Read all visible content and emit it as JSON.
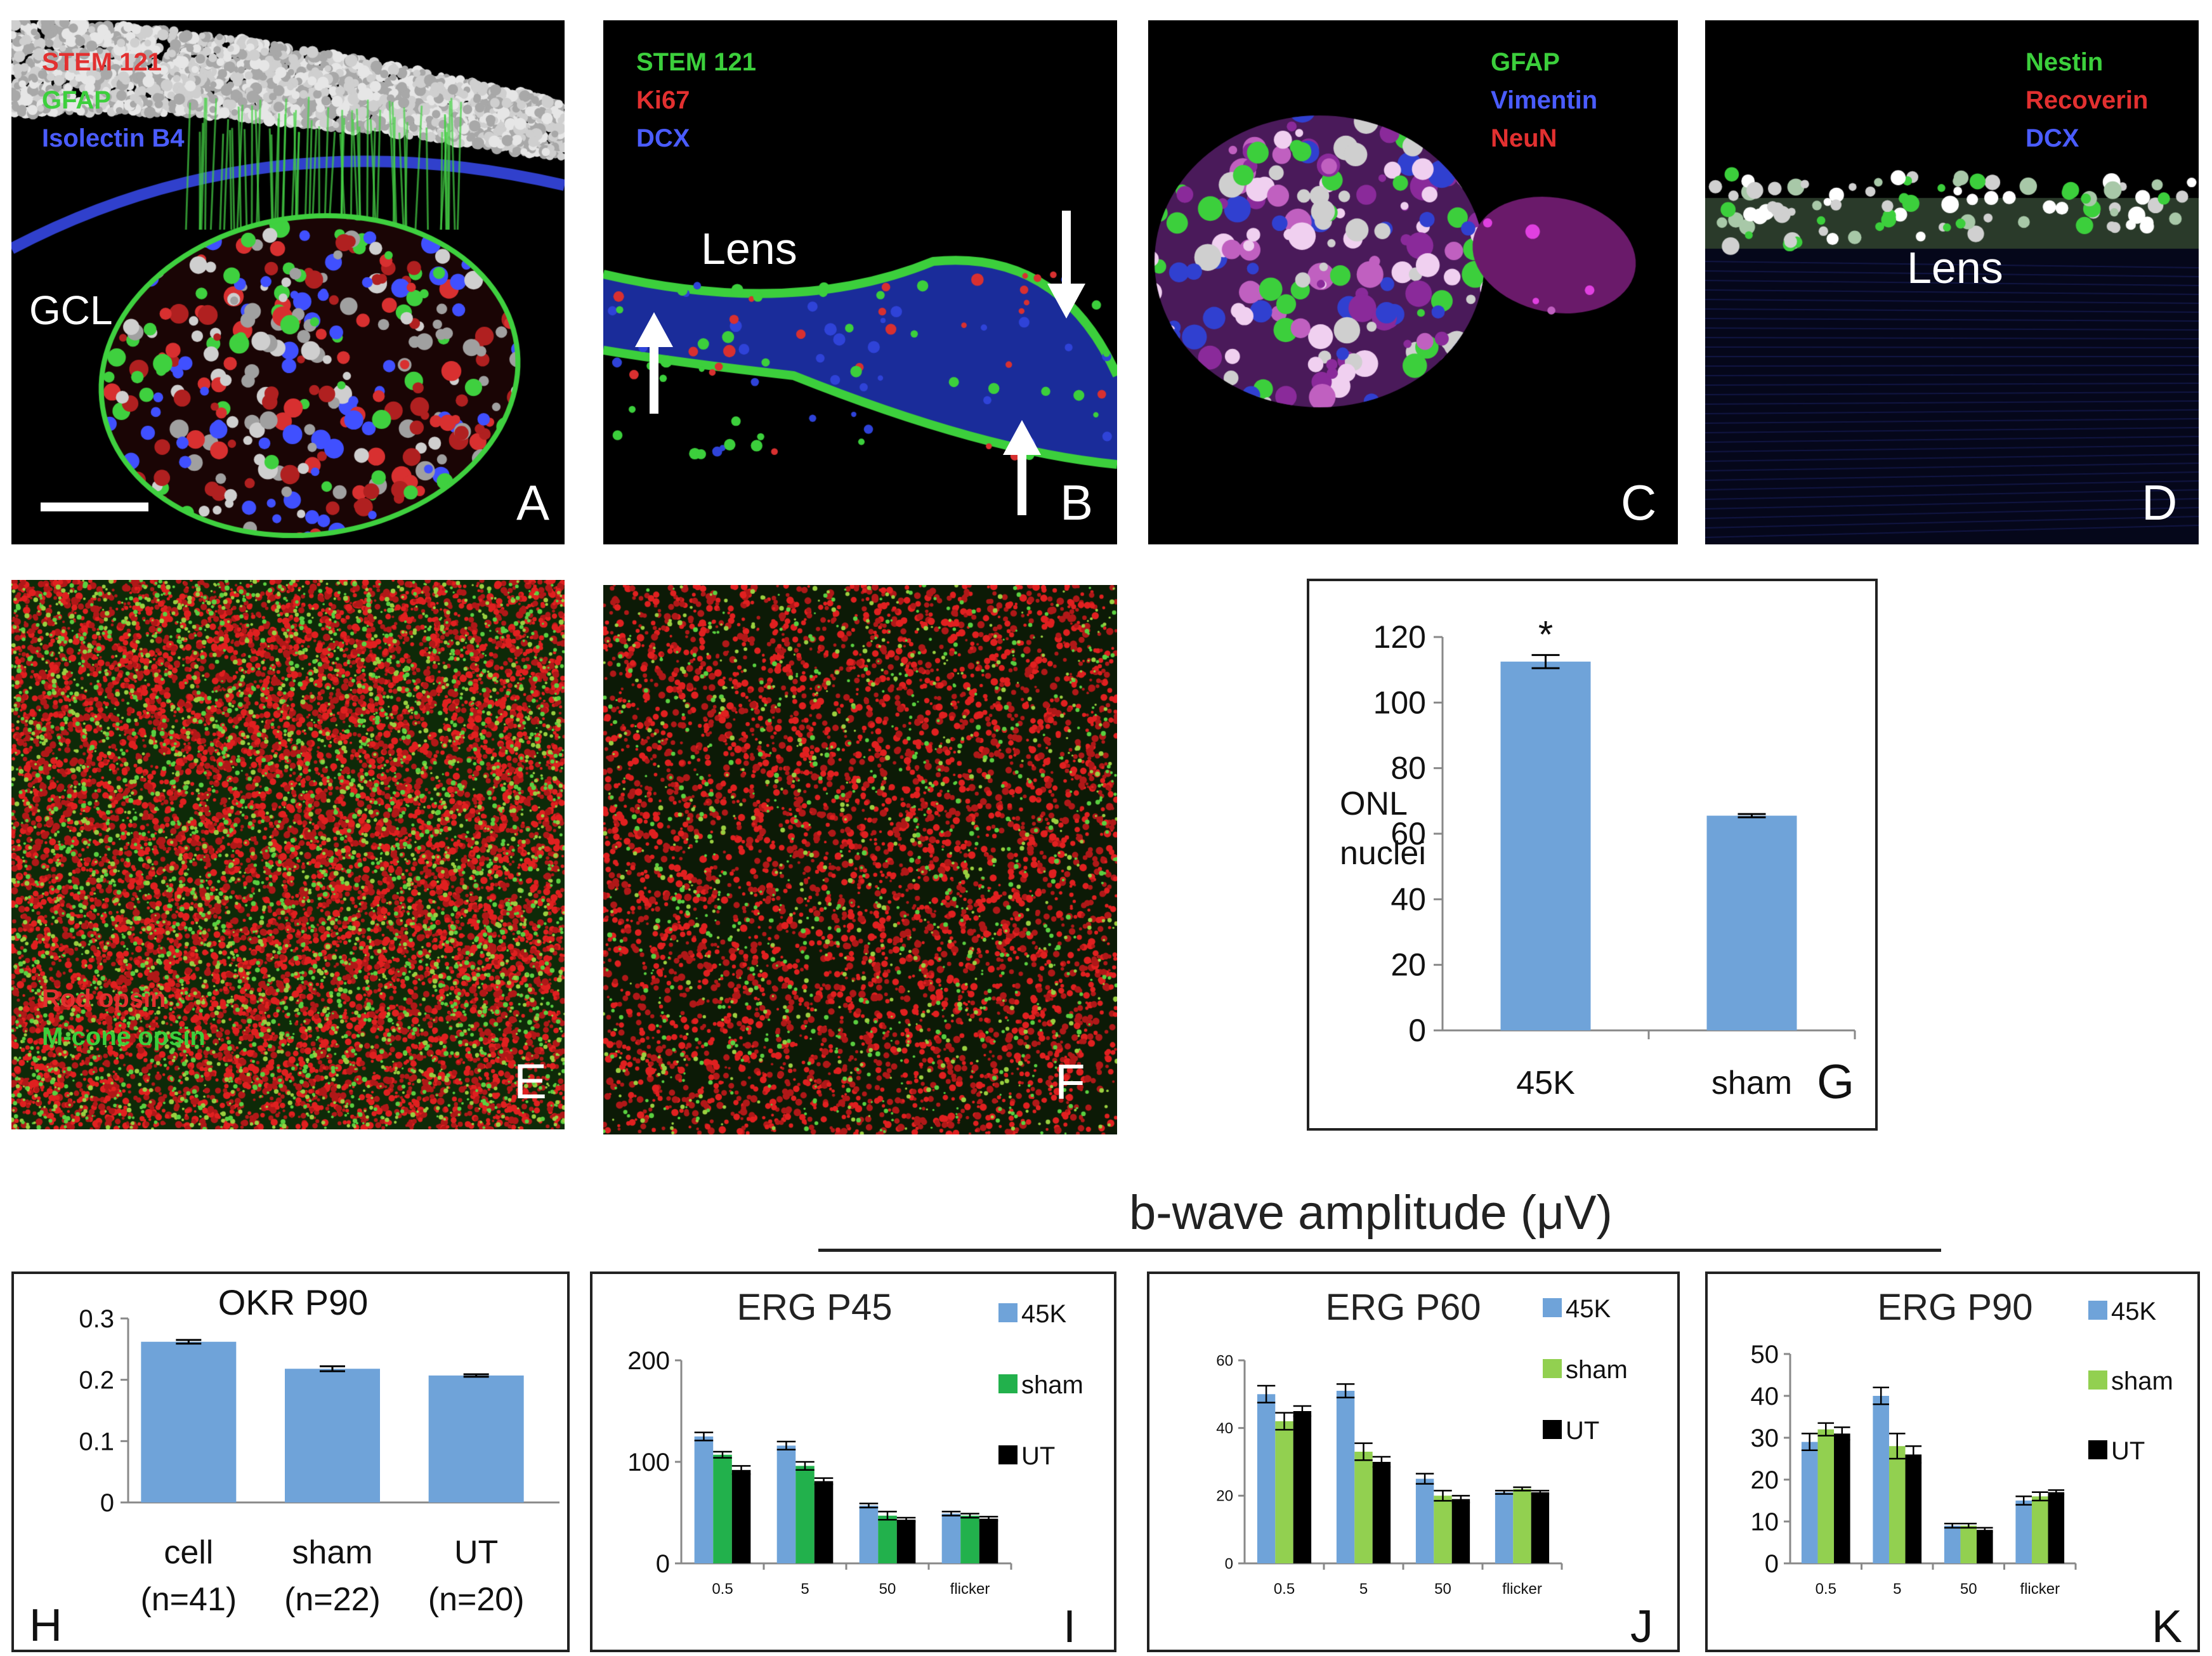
{
  "panels": {
    "A": {
      "letter": "A",
      "stains": [
        {
          "text": "STEM 121",
          "color": "#e23030"
        },
        {
          "text": "GFAP",
          "color": "#3ccf3c"
        },
        {
          "text": "Isolectin B4",
          "color": "#4a5cff"
        }
      ],
      "label": "GCL"
    },
    "B": {
      "letter": "B",
      "stains": [
        {
          "text": "STEM 121",
          "color": "#3ccf3c"
        },
        {
          "text": "Ki67",
          "color": "#e23030"
        },
        {
          "text": "DCX",
          "color": "#4a5cff"
        }
      ],
      "label": "Lens"
    },
    "C": {
      "letter": "C",
      "stains": [
        {
          "text": "GFAP",
          "color": "#3ccf3c"
        },
        {
          "text": "Vimentin",
          "color": "#4a5cff"
        },
        {
          "text": "NeuN",
          "color": "#e23030"
        }
      ]
    },
    "D": {
      "letter": "D",
      "stains": [
        {
          "text": "Nestin",
          "color": "#3ccf3c"
        },
        {
          "text": "Recoverin",
          "color": "#e23030"
        },
        {
          "text": "DCX",
          "color": "#4a5cff"
        }
      ],
      "label": "Lens"
    },
    "E": {
      "letter": "E",
      "stains": [
        {
          "text": "Rod opsin",
          "color": "#e23030"
        },
        {
          "text": "M-cone opsin",
          "color": "#3ccf3c"
        }
      ]
    },
    "F": {
      "letter": "F"
    }
  },
  "bwave_title": "b-wave amplitude (μV)",
  "colors": {
    "blue": "#6fa3d9",
    "green_I": "#22b14c",
    "green": "#92d050",
    "black": "#000000"
  },
  "chart_data": [
    {
      "id": "G",
      "letter": "G",
      "type": "bar",
      "title": "",
      "ylabel": [
        "ONL",
        "nuclei"
      ],
      "categories": [
        "45K",
        "sham"
      ],
      "values": [
        112.5,
        65.5
      ],
      "errors": [
        2,
        0.5
      ],
      "significance": [
        "*",
        ""
      ],
      "ylim": [
        0,
        120
      ],
      "yticks": [
        "0",
        "20",
        "40",
        "60",
        "80",
        "100",
        "120"
      ],
      "ytick_values": [
        0,
        20,
        40,
        60,
        80,
        100,
        120
      ]
    },
    {
      "id": "H",
      "letter": "H",
      "type": "bar",
      "title": "OKR P90",
      "categories": [
        "cell",
        "sham",
        "UT"
      ],
      "sublabels": [
        "(n=41)",
        "(n=22)",
        "(n=20)"
      ],
      "values": [
        0.262,
        0.218,
        0.207
      ],
      "errors": [
        0.003,
        0.004,
        0.002
      ],
      "ylim": [
        0,
        0.3
      ],
      "yticks": [
        "0",
        "0.1",
        "0.2",
        "0.3"
      ],
      "ytick_values": [
        0,
        0.1,
        0.2,
        0.3
      ]
    },
    {
      "id": "I",
      "letter": "I",
      "type": "bar",
      "title": "ERG P45",
      "categories": [
        "0.5",
        "5",
        "50",
        "flicker"
      ],
      "series": [
        {
          "name": "45K",
          "values": [
            125,
            116,
            57,
            49
          ],
          "errors": [
            4,
            4,
            2,
            2
          ]
        },
        {
          "name": "sham",
          "values": [
            107,
            96,
            47,
            47
          ],
          "errors": [
            3,
            4,
            4,
            2
          ]
        },
        {
          "name": "UT",
          "values": [
            92,
            81,
            43,
            44
          ],
          "errors": [
            4,
            3,
            2,
            2
          ]
        }
      ],
      "ylim": [
        0,
        200
      ],
      "yticks": [
        "0",
        "100",
        "200"
      ],
      "ytick_values": [
        0,
        100,
        200
      ]
    },
    {
      "id": "J",
      "letter": "J",
      "type": "bar",
      "title": "ERG P60",
      "categories": [
        "0.5",
        "5",
        "50",
        "flicker"
      ],
      "series": [
        {
          "name": "45K",
          "values": [
            50,
            51,
            25,
            21
          ],
          "errors": [
            2.5,
            2,
            1.5,
            0.5
          ]
        },
        {
          "name": "sham",
          "values": [
            42,
            33,
            20,
            22
          ],
          "errors": [
            2.5,
            2.5,
            1.5,
            0.5
          ]
        },
        {
          "name": "UT",
          "values": [
            45,
            30,
            19,
            21
          ],
          "errors": [
            1.5,
            1.5,
            1,
            0.5
          ]
        }
      ],
      "ylim": [
        0,
        60
      ],
      "yticks": [
        "0",
        "20",
        "40",
        "60"
      ],
      "ytick_values": [
        0,
        20,
        40,
        60
      ]
    },
    {
      "id": "K",
      "letter": "K",
      "type": "bar",
      "title": "ERG P90",
      "categories": [
        "0.5",
        "5",
        "50",
        "flicker"
      ],
      "series": [
        {
          "name": "45K",
          "values": [
            29,
            40,
            9,
            15
          ],
          "errors": [
            2,
            2,
            0.5,
            1
          ]
        },
        {
          "name": "sham",
          "values": [
            32,
            28,
            9,
            16
          ],
          "errors": [
            1.5,
            3,
            0.5,
            1
          ]
        },
        {
          "name": "UT",
          "values": [
            31,
            26,
            8,
            17
          ],
          "errors": [
            1.5,
            2,
            0.5,
            0.5
          ]
        }
      ],
      "ylim": [
        0,
        50
      ],
      "yticks": [
        "0",
        "10",
        "20",
        "30",
        "40",
        "50"
      ],
      "ytick_values": [
        0,
        10,
        20,
        30,
        40,
        50
      ]
    }
  ]
}
